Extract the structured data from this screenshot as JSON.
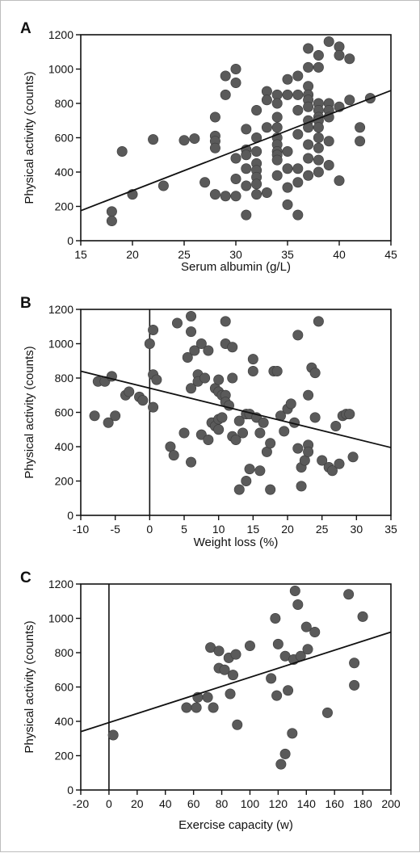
{
  "chart_data": [
    {
      "type": "scatter",
      "panel_label": "A",
      "xlabel": "Serum albumin (g/L)",
      "ylabel": "Physical activity (counts)",
      "xlim": [
        15,
        45
      ],
      "ylim": [
        0,
        1200
      ],
      "xticks": [
        15,
        20,
        25,
        30,
        35,
        40,
        45
      ],
      "yticks": [
        0,
        200,
        400,
        600,
        800,
        1000,
        1200
      ],
      "reference_line_x": null,
      "regression_line": {
        "x": [
          15,
          45
        ],
        "y": [
          175,
          875
        ]
      },
      "marker_color": "#5a5a5a",
      "points": [
        [
          18,
          170
        ],
        [
          18,
          115
        ],
        [
          19,
          520
        ],
        [
          20,
          270
        ],
        [
          22,
          590
        ],
        [
          23,
          320
        ],
        [
          25,
          585
        ],
        [
          26,
          595
        ],
        [
          27,
          340
        ],
        [
          28,
          720
        ],
        [
          28,
          610
        ],
        [
          28,
          580
        ],
        [
          28,
          540
        ],
        [
          28,
          270
        ],
        [
          29,
          960
        ],
        [
          29,
          850
        ],
        [
          29,
          260
        ],
        [
          30,
          1000
        ],
        [
          30,
          920
        ],
        [
          30,
          480
        ],
        [
          30,
          360
        ],
        [
          30,
          260
        ],
        [
          31,
          650
        ],
        [
          31,
          530
        ],
        [
          31,
          500
        ],
        [
          31,
          420
        ],
        [
          31,
          320
        ],
        [
          31,
          150
        ],
        [
          32,
          760
        ],
        [
          32,
          600
        ],
        [
          32,
          520
        ],
        [
          32,
          450
        ],
        [
          32,
          410
        ],
        [
          32,
          370
        ],
        [
          32,
          330
        ],
        [
          32,
          270
        ],
        [
          33,
          870
        ],
        [
          33,
          820
        ],
        [
          33,
          660
        ],
        [
          33,
          280
        ],
        [
          34,
          850
        ],
        [
          34,
          800
        ],
        [
          34,
          720
        ],
        [
          34,
          660
        ],
        [
          34,
          600
        ],
        [
          34,
          560
        ],
        [
          34,
          520
        ],
        [
          34,
          500
        ],
        [
          34,
          470
        ],
        [
          34,
          380
        ],
        [
          35,
          940
        ],
        [
          35,
          850
        ],
        [
          35,
          520
        ],
        [
          35,
          420
        ],
        [
          35,
          310
        ],
        [
          35,
          210
        ],
        [
          36,
          960
        ],
        [
          36,
          850
        ],
        [
          36,
          760
        ],
        [
          36,
          620
        ],
        [
          36,
          420
        ],
        [
          36,
          340
        ],
        [
          36,
          150
        ],
        [
          37,
          1120
        ],
        [
          37,
          1010
        ],
        [
          37,
          900
        ],
        [
          37,
          850
        ],
        [
          37,
          820
        ],
        [
          37,
          780
        ],
        [
          37,
          700
        ],
        [
          37,
          660
        ],
        [
          37,
          560
        ],
        [
          37,
          480
        ],
        [
          37,
          380
        ],
        [
          38,
          1080
        ],
        [
          38,
          1010
        ],
        [
          38,
          800
        ],
        [
          38,
          760
        ],
        [
          38,
          720
        ],
        [
          38,
          700
        ],
        [
          38,
          660
        ],
        [
          38,
          600
        ],
        [
          38,
          540
        ],
        [
          38,
          470
        ],
        [
          38,
          400
        ],
        [
          39,
          1160
        ],
        [
          39,
          800
        ],
        [
          39,
          760
        ],
        [
          39,
          720
        ],
        [
          39,
          580
        ],
        [
          39,
          440
        ],
        [
          40,
          1130
        ],
        [
          40,
          1080
        ],
        [
          40,
          780
        ],
        [
          40,
          350
        ],
        [
          41,
          1060
        ],
        [
          41,
          820
        ],
        [
          42,
          660
        ],
        [
          42,
          580
        ],
        [
          43,
          830
        ]
      ]
    },
    {
      "type": "scatter",
      "panel_label": "B",
      "xlabel": "Weight loss (%)",
      "ylabel": "Physical activity (counts)",
      "xlim": [
        -10,
        35
      ],
      "ylim": [
        0,
        1200
      ],
      "xticks": [
        -10,
        -5,
        0,
        5,
        10,
        15,
        20,
        25,
        30,
        35
      ],
      "yticks": [
        0,
        200,
        400,
        600,
        800,
        1000,
        1200
      ],
      "reference_line_x": 0,
      "regression_line": {
        "x": [
          -10,
          35
        ],
        "y": [
          840,
          395
        ]
      },
      "marker_color": "#5a5a5a",
      "points": [
        [
          -8,
          580
        ],
        [
          -7.5,
          780
        ],
        [
          -6.5,
          780
        ],
        [
          -6,
          540
        ],
        [
          -5.5,
          810
        ],
        [
          -5,
          580
        ],
        [
          -3.5,
          700
        ],
        [
          -3,
          720
        ],
        [
          -1.5,
          690
        ],
        [
          -1,
          670
        ],
        [
          0,
          1000
        ],
        [
          0.5,
          1080
        ],
        [
          0.5,
          820
        ],
        [
          1,
          790
        ],
        [
          0.5,
          630
        ],
        [
          3,
          400
        ],
        [
          3.5,
          350
        ],
        [
          4,
          1120
        ],
        [
          5,
          480
        ],
        [
          5.5,
          920
        ],
        [
          6,
          1160
        ],
        [
          6,
          1070
        ],
        [
          6,
          740
        ],
        [
          6,
          310
        ],
        [
          6.5,
          960
        ],
        [
          7,
          820
        ],
        [
          7,
          780
        ],
        [
          7.5,
          470
        ],
        [
          7.5,
          1000
        ],
        [
          8,
          800
        ],
        [
          8.5,
          960
        ],
        [
          8.5,
          440
        ],
        [
          9,
          540
        ],
        [
          9.5,
          740
        ],
        [
          9.5,
          520
        ],
        [
          10,
          790
        ],
        [
          10,
          720
        ],
        [
          10,
          560
        ],
        [
          10,
          500
        ],
        [
          10.5,
          700
        ],
        [
          10.5,
          570
        ],
        [
          11,
          1130
        ],
        [
          11,
          1000
        ],
        [
          11,
          700
        ],
        [
          11,
          660
        ],
        [
          11.5,
          640
        ],
        [
          12,
          980
        ],
        [
          12,
          800
        ],
        [
          12,
          460
        ],
        [
          12.5,
          440
        ],
        [
          13,
          550
        ],
        [
          13,
          150
        ],
        [
          13.5,
          480
        ],
        [
          14,
          590
        ],
        [
          14,
          200
        ],
        [
          14.5,
          270
        ],
        [
          14.5,
          590
        ],
        [
          15,
          910
        ],
        [
          15,
          840
        ],
        [
          15.5,
          570
        ],
        [
          16,
          480
        ],
        [
          16,
          260
        ],
        [
          16.5,
          540
        ],
        [
          17,
          370
        ],
        [
          17.5,
          420
        ],
        [
          17.5,
          150
        ],
        [
          18,
          840
        ],
        [
          18.5,
          840
        ],
        [
          19,
          580
        ],
        [
          19.5,
          490
        ],
        [
          20,
          620
        ],
        [
          20.5,
          650
        ],
        [
          21,
          540
        ],
        [
          21.5,
          1050
        ],
        [
          21.5,
          390
        ],
        [
          22,
          280
        ],
        [
          22,
          170
        ],
        [
          22.5,
          320
        ],
        [
          23,
          700
        ],
        [
          23,
          410
        ],
        [
          23,
          370
        ],
        [
          23.5,
          860
        ],
        [
          24,
          830
        ],
        [
          24,
          570
        ],
        [
          24.5,
          1130
        ],
        [
          25,
          320
        ],
        [
          26,
          280
        ],
        [
          26.5,
          260
        ],
        [
          27,
          520
        ],
        [
          27.5,
          300
        ],
        [
          28,
          580
        ],
        [
          28.5,
          590
        ],
        [
          29,
          590
        ],
        [
          29.5,
          340
        ]
      ]
    },
    {
      "type": "scatter",
      "panel_label": "C",
      "xlabel": "Exercise capacity (w)",
      "ylabel": "Physical activity (counts)",
      "xlim": [
        -20,
        200
      ],
      "ylim": [
        0,
        1200
      ],
      "xticks": [
        -20,
        0,
        20,
        40,
        60,
        80,
        100,
        120,
        140,
        160,
        180,
        200
      ],
      "yticks": [
        0,
        200,
        400,
        600,
        800,
        1000,
        1200
      ],
      "reference_line_x": 0,
      "regression_line": {
        "x": [
          -20,
          200
        ],
        "y": [
          340,
          920
        ]
      },
      "marker_color": "#5a5a5a",
      "points": [
        [
          3,
          320
        ],
        [
          55,
          480
        ],
        [
          62,
          480
        ],
        [
          63,
          540
        ],
        [
          70,
          540
        ],
        [
          72,
          830
        ],
        [
          74,
          480
        ],
        [
          78,
          810
        ],
        [
          78,
          710
        ],
        [
          82,
          700
        ],
        [
          85,
          770
        ],
        [
          86,
          560
        ],
        [
          88,
          670
        ],
        [
          90,
          790
        ],
        [
          91,
          380
        ],
        [
          100,
          840
        ],
        [
          115,
          650
        ],
        [
          118,
          1000
        ],
        [
          120,
          850
        ],
        [
          119,
          550
        ],
        [
          122,
          150
        ],
        [
          125,
          210
        ],
        [
          125,
          780
        ],
        [
          127,
          580
        ],
        [
          130,
          330
        ],
        [
          131,
          760
        ],
        [
          132,
          1160
        ],
        [
          134,
          1080
        ],
        [
          136,
          780
        ],
        [
          140,
          950
        ],
        [
          141,
          820
        ],
        [
          146,
          920
        ],
        [
          155,
          450
        ],
        [
          170,
          1140
        ],
        [
          174,
          740
        ],
        [
          174,
          610
        ],
        [
          180,
          1010
        ]
      ]
    }
  ]
}
